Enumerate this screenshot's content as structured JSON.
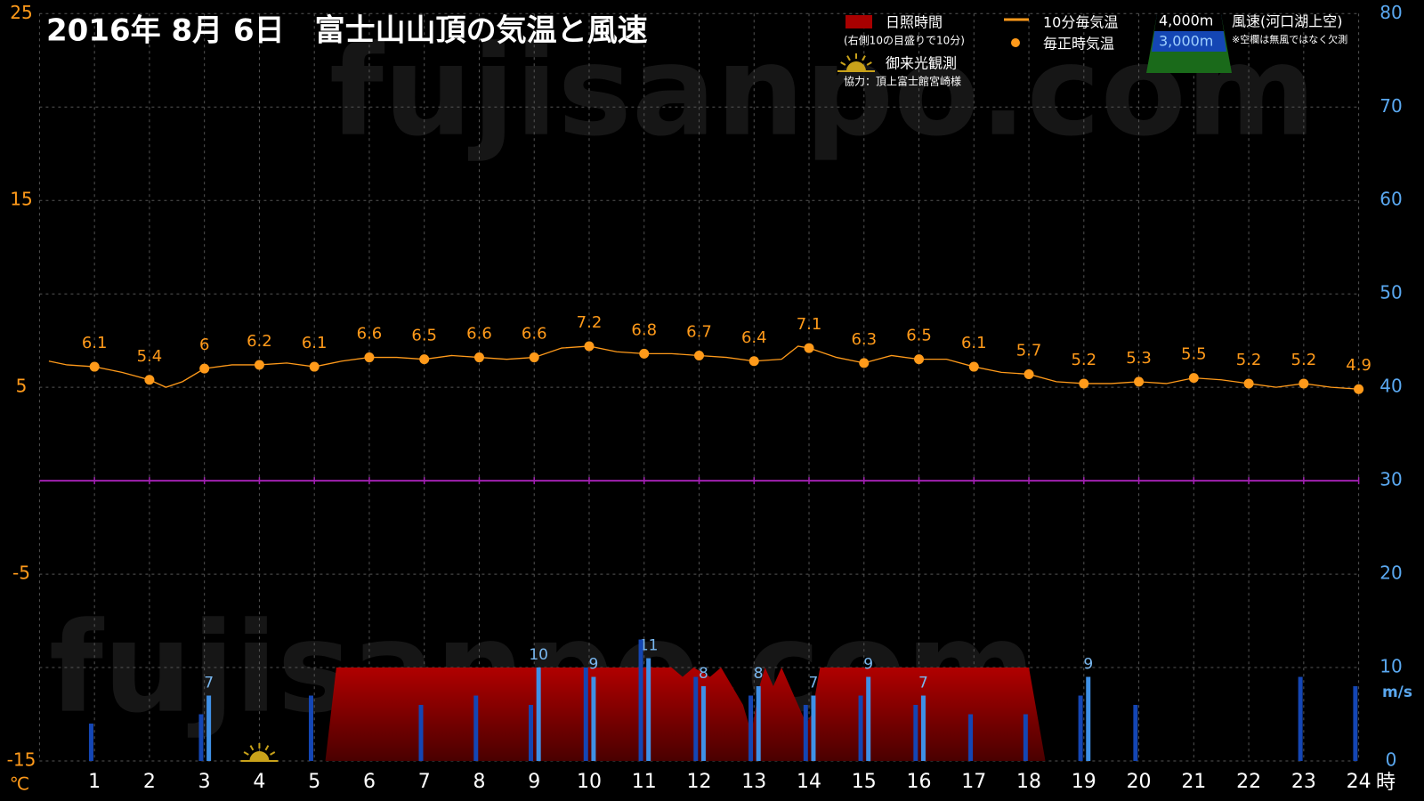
{
  "chart_data": {
    "type": "combo",
    "title": "2016年 8月 6日　富士山山頂の気温と風速",
    "watermark": "fujisanpo.com",
    "ylabel": "℃",
    "y2label": "m/s",
    "xlabel": "時",
    "xlim": [
      0,
      24
    ],
    "xticks": [
      1,
      2,
      3,
      4,
      5,
      6,
      7,
      8,
      9,
      10,
      11,
      12,
      13,
      14,
      15,
      16,
      17,
      18,
      19,
      20,
      21,
      22,
      23,
      24
    ],
    "ylim": [
      -15,
      25
    ],
    "yticks": [
      -15,
      -5,
      5,
      15,
      25
    ],
    "y2lim": [
      0,
      80
    ],
    "y2ticks": [
      0,
      10,
      20,
      30,
      40,
      50,
      60,
      70,
      80
    ],
    "grid": true,
    "series": [
      {
        "name": "日照時間",
        "note": "(右側10の目盛りで10分)",
        "type": "area",
        "axis": "y2",
        "color": "#a80000",
        "x": [
          5.2,
          5.4,
          11.5,
          11.7,
          11.9,
          12.2,
          12.4,
          12.6,
          12.8,
          12.95,
          13.1,
          13.2,
          13.35,
          13.5,
          13.65,
          13.8,
          13.95,
          14.05,
          14.2,
          18.0,
          18.3
        ],
        "values": [
          0,
          10,
          10,
          9,
          10,
          9,
          10,
          8,
          6,
          3,
          8,
          10,
          8,
          10,
          8,
          6,
          4,
          5,
          10,
          10,
          0
        ]
      },
      {
        "name": "10分毎気温",
        "type": "line",
        "color": "#ff9a1a",
        "x": [
          0.17,
          0.5,
          1,
          1.5,
          2,
          2.3,
          2.6,
          3,
          3.5,
          4,
          4.5,
          5,
          5.5,
          6,
          6.5,
          7,
          7.5,
          8,
          8.5,
          9,
          9.5,
          10,
          10.5,
          11,
          11.5,
          12,
          12.5,
          13,
          13.5,
          13.8,
          14,
          14.5,
          15,
          15.5,
          16,
          16.5,
          17,
          17.5,
          18,
          18.5,
          19,
          19.5,
          20,
          20.5,
          21,
          21.5,
          22,
          22.5,
          23,
          23.5,
          24
        ],
        "values": [
          6.4,
          6.2,
          6.1,
          5.8,
          5.4,
          5.0,
          5.3,
          6.0,
          6.2,
          6.2,
          6.3,
          6.1,
          6.4,
          6.6,
          6.6,
          6.5,
          6.7,
          6.6,
          6.5,
          6.6,
          7.1,
          7.2,
          6.9,
          6.8,
          6.8,
          6.7,
          6.6,
          6.4,
          6.5,
          7.2,
          7.1,
          6.6,
          6.3,
          6.7,
          6.5,
          6.5,
          6.1,
          5.8,
          5.7,
          5.3,
          5.2,
          5.2,
          5.3,
          5.2,
          5.5,
          5.4,
          5.2,
          5.0,
          5.2,
          5.0,
          4.9
        ]
      },
      {
        "name": "毎正時気温",
        "type": "scatter",
        "color": "#ff9a1a",
        "x": [
          1,
          2,
          3,
          4,
          5,
          6,
          7,
          8,
          9,
          10,
          11,
          12,
          13,
          14,
          15,
          16,
          17,
          18,
          19,
          20,
          21,
          22,
          23,
          24
        ],
        "values": [
          6.1,
          5.4,
          6,
          6.2,
          6.1,
          6.6,
          6.5,
          6.6,
          6.6,
          7.2,
          6.8,
          6.7,
          6.4,
          7.1,
          6.3,
          6.5,
          6.1,
          5.7,
          5.2,
          5.3,
          5.5,
          5.2,
          5.2,
          4.9
        ]
      },
      {
        "name": "4,000m",
        "type": "bar",
        "axis": "y2",
        "color": "#3f90e6",
        "x": [
          1,
          2,
          3,
          4,
          5,
          6,
          7,
          8,
          9,
          10,
          11,
          12,
          13,
          14,
          15,
          16,
          17,
          18,
          19,
          20,
          21,
          22,
          23,
          24
        ],
        "values": [
          null,
          null,
          7,
          null,
          null,
          null,
          null,
          null,
          10,
          9,
          11,
          8,
          8,
          7,
          9,
          7,
          null,
          null,
          9,
          null,
          null,
          null,
          null,
          null
        ]
      },
      {
        "name": "3,000m",
        "type": "bar",
        "axis": "y2",
        "color": "#1446b4",
        "x": [
          1,
          2,
          3,
          4,
          5,
          6,
          7,
          8,
          9,
          10,
          11,
          12,
          13,
          14,
          15,
          16,
          17,
          18,
          19,
          20,
          21,
          22,
          23,
          24
        ],
        "values": [
          4,
          null,
          5,
          null,
          7,
          null,
          6,
          7,
          6,
          10,
          13,
          9,
          7,
          6,
          7,
          6,
          5,
          5,
          7,
          6,
          null,
          null,
          9,
          8
        ]
      }
    ],
    "wind_title": "風速(河口湖上空)",
    "wind_note": "※空欄は無風ではなく欠測",
    "markers": [
      {
        "name": "御来光観測",
        "x": 4
      }
    ],
    "credit": "協力：頂上富士館宮崎様"
  }
}
